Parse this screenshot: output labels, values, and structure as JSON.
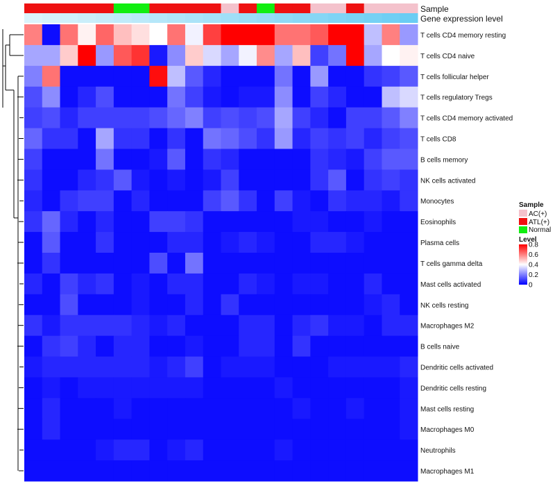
{
  "chart_data": {
    "type": "heatmap",
    "title": "",
    "annotation_labels": [
      "Sample",
      "Gene expression level"
    ],
    "sample_legend": {
      "title": "Sample",
      "entries": [
        {
          "label": "AC(+)",
          "color": "#f4c2cc"
        },
        {
          "label": "ATL(+)",
          "color": "#ee1111"
        },
        {
          "label": "Normal",
          "color": "#11ee11"
        }
      ]
    },
    "level_legend": {
      "title": "Level",
      "ticks": [
        "0.8",
        "0.6",
        "0.4",
        "0.2",
        "0"
      ],
      "tick_values": [
        0.8,
        0.6,
        0.4,
        0.2,
        0
      ],
      "min": 0,
      "max": 0.8,
      "colors": [
        "#0000ff",
        "#ffffff",
        "#ff0000"
      ]
    },
    "samples": [
      "ATL(+)",
      "ATL(+)",
      "ATL(+)",
      "ATL(+)",
      "ATL(+)",
      "Normal",
      "Normal",
      "ATL(+)",
      "ATL(+)",
      "ATL(+)",
      "ATL(+)",
      "AC(+)",
      "ATL(+)",
      "Normal",
      "ATL(+)",
      "ATL(+)",
      "AC(+)",
      "AC(+)",
      "ATL(+)",
      "AC(+)",
      "AC(+)",
      "AC(+)"
    ],
    "expression_level": [
      0.95,
      0.91,
      0.87,
      0.83,
      0.79,
      0.75,
      0.71,
      0.67,
      0.63,
      0.59,
      0.55,
      0.51,
      0.47,
      0.43,
      0.39,
      0.35,
      0.31,
      0.27,
      0.23,
      0.19,
      0.15,
      0.11
    ],
    "expression_colors": [
      "#e2f6fc",
      "#5bc8f2"
    ],
    "rows": [
      "T cells CD4 memory resting",
      "T cells CD4 naive",
      "T cells follicular helper",
      "T cells regulatory  Tregs",
      "T cells CD4 memory activated",
      "T cells CD8",
      "B cells memory",
      "NK cells activated",
      "Monocytes",
      "Eosinophils",
      "Plasma cells",
      "T cells gamma delta",
      "Mast cells activated",
      "NK cells resting",
      "Macrophages M2",
      "B cells naive",
      "Dendritic cells activated",
      "Dendritic cells resting",
      "Mast cells resting",
      "Macrophages M0",
      "Neutrophils",
      "Macrophages M1"
    ],
    "values": [
      [
        0.6,
        0.02,
        0.62,
        0.42,
        0.64,
        0.5,
        0.45,
        0.4,
        0.62,
        0.38,
        0.7,
        0.8,
        0.8,
        0.8,
        0.62,
        0.62,
        0.66,
        0.8,
        0.8,
        0.3,
        0.6,
        0.24
      ],
      [
        0.26,
        0.26,
        0.48,
        0.8,
        0.24,
        0.66,
        0.72,
        0.04,
        0.22,
        0.48,
        0.34,
        0.26,
        0.38,
        0.58,
        0.26,
        0.5,
        0.1,
        0.18,
        0.8,
        0.26,
        0.4,
        0.42
      ],
      [
        0.2,
        0.62,
        0.02,
        0.02,
        0.02,
        0.02,
        0.02,
        0.78,
        0.3,
        0.14,
        0.06,
        0.02,
        0.02,
        0.02,
        0.18,
        0.02,
        0.24,
        0.02,
        0.02,
        0.08,
        0.1,
        0.14
      ],
      [
        0.12,
        0.22,
        0.02,
        0.06,
        0.12,
        0.02,
        0.02,
        0.02,
        0.18,
        0.1,
        0.04,
        0.02,
        0.04,
        0.04,
        0.22,
        0.02,
        0.1,
        0.06,
        0.02,
        0.02,
        0.3,
        0.34
      ],
      [
        0.1,
        0.12,
        0.06,
        0.1,
        0.1,
        0.1,
        0.1,
        0.12,
        0.16,
        0.2,
        0.1,
        0.12,
        0.1,
        0.12,
        0.26,
        0.1,
        0.06,
        0.02,
        0.1,
        0.1,
        0.14,
        0.2
      ],
      [
        0.16,
        0.08,
        0.08,
        0.02,
        0.26,
        0.08,
        0.08,
        0.02,
        0.08,
        0.02,
        0.18,
        0.16,
        0.12,
        0.08,
        0.24,
        0.06,
        0.1,
        0.08,
        0.1,
        0.06,
        0.1,
        0.12
      ],
      [
        0.1,
        0.02,
        0.02,
        0.02,
        0.18,
        0.02,
        0.02,
        0.04,
        0.14,
        0.02,
        0.08,
        0.06,
        0.02,
        0.02,
        0.02,
        0.02,
        0.08,
        0.06,
        0.04,
        0.1,
        0.14,
        0.14
      ],
      [
        0.08,
        0.02,
        0.02,
        0.06,
        0.08,
        0.14,
        0.04,
        0.02,
        0.04,
        0.02,
        0.04,
        0.1,
        0.02,
        0.02,
        0.02,
        0.02,
        0.08,
        0.14,
        0.02,
        0.08,
        0.1,
        0.08
      ],
      [
        0.06,
        0.02,
        0.08,
        0.1,
        0.1,
        0.02,
        0.06,
        0.02,
        0.02,
        0.02,
        0.1,
        0.14,
        0.08,
        0.02,
        0.1,
        0.04,
        0.02,
        0.08,
        0.06,
        0.06,
        0.04,
        0.08
      ],
      [
        0.08,
        0.16,
        0.06,
        0.02,
        0.06,
        0.02,
        0.02,
        0.1,
        0.1,
        0.08,
        0.02,
        0.02,
        0.02,
        0.02,
        0.02,
        0.04,
        0.04,
        0.02,
        0.02,
        0.04,
        0.02,
        0.02
      ],
      [
        0.02,
        0.14,
        0.02,
        0.02,
        0.08,
        0.02,
        0.02,
        0.02,
        0.06,
        0.06,
        0.02,
        0.04,
        0.06,
        0.04,
        0.02,
        0.02,
        0.06,
        0.06,
        0.04,
        0.02,
        0.02,
        0.02
      ],
      [
        0.02,
        0.08,
        0.02,
        0.02,
        0.02,
        0.02,
        0.02,
        0.12,
        0.02,
        0.18,
        0.02,
        0.02,
        0.02,
        0.02,
        0.02,
        0.02,
        0.02,
        0.02,
        0.02,
        0.02,
        0.02,
        0.02
      ],
      [
        0.06,
        0.02,
        0.1,
        0.06,
        0.08,
        0.02,
        0.04,
        0.02,
        0.06,
        0.06,
        0.02,
        0.02,
        0.06,
        0.04,
        0.02,
        0.04,
        0.04,
        0.02,
        0.02,
        0.06,
        0.02,
        0.02
      ],
      [
        0.02,
        0.02,
        0.12,
        0.02,
        0.02,
        0.02,
        0.04,
        0.02,
        0.02,
        0.06,
        0.02,
        0.08,
        0.02,
        0.02,
        0.02,
        0.02,
        0.02,
        0.02,
        0.02,
        0.04,
        0.06,
        0.02
      ],
      [
        0.08,
        0.04,
        0.08,
        0.08,
        0.08,
        0.08,
        0.06,
        0.04,
        0.06,
        0.02,
        0.02,
        0.02,
        0.06,
        0.06,
        0.02,
        0.06,
        0.08,
        0.04,
        0.04,
        0.02,
        0.06,
        0.06
      ],
      [
        0.02,
        0.08,
        0.1,
        0.06,
        0.02,
        0.06,
        0.06,
        0.02,
        0.02,
        0.04,
        0.02,
        0.02,
        0.06,
        0.06,
        0.02,
        0.08,
        0.02,
        0.02,
        0.02,
        0.02,
        0.02,
        0.02
      ],
      [
        0.04,
        0.06,
        0.06,
        0.06,
        0.06,
        0.06,
        0.06,
        0.04,
        0.06,
        0.1,
        0.02,
        0.04,
        0.04,
        0.04,
        0.02,
        0.02,
        0.02,
        0.04,
        0.04,
        0.04,
        0.04,
        0.06
      ],
      [
        0.02,
        0.04,
        0.02,
        0.04,
        0.04,
        0.04,
        0.04,
        0.04,
        0.04,
        0.04,
        0.02,
        0.02,
        0.02,
        0.02,
        0.04,
        0.02,
        0.02,
        0.02,
        0.02,
        0.02,
        0.02,
        0.04
      ],
      [
        0.02,
        0.06,
        0.02,
        0.02,
        0.02,
        0.04,
        0.02,
        0.02,
        0.02,
        0.02,
        0.02,
        0.02,
        0.02,
        0.02,
        0.02,
        0.04,
        0.02,
        0.02,
        0.04,
        0.02,
        0.02,
        0.04
      ],
      [
        0.02,
        0.06,
        0.02,
        0.02,
        0.02,
        0.02,
        0.02,
        0.02,
        0.02,
        0.02,
        0.02,
        0.02,
        0.02,
        0.02,
        0.02,
        0.02,
        0.02,
        0.02,
        0.02,
        0.02,
        0.02,
        0.04
      ],
      [
        0.02,
        0.02,
        0.02,
        0.02,
        0.04,
        0.06,
        0.06,
        0.02,
        0.04,
        0.06,
        0.02,
        0.02,
        0.02,
        0.02,
        0.04,
        0.02,
        0.02,
        0.02,
        0.02,
        0.02,
        0.02,
        0.02
      ],
      [
        0.02,
        0.02,
        0.02,
        0.02,
        0.02,
        0.02,
        0.02,
        0.02,
        0.02,
        0.02,
        0.02,
        0.02,
        0.02,
        0.02,
        0.02,
        0.02,
        0.02,
        0.02,
        0.02,
        0.02,
        0.02,
        0.02
      ]
    ]
  }
}
